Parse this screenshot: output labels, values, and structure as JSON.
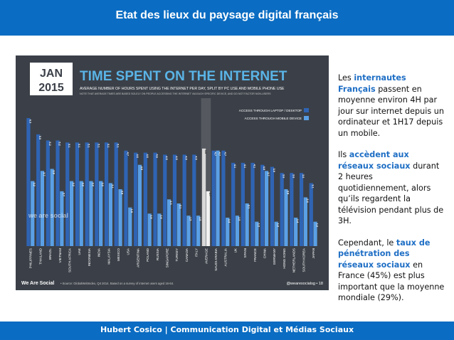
{
  "header": {
    "title": "Etat des lieux du paysage digital français"
  },
  "footer": {
    "text": "Hubert Cosico | Communication Digital et Médias Sociaux"
  },
  "slide": {
    "date_month": "JAN",
    "date_year": "2015",
    "brand_tag": "we are social",
    "footer_left": "We Are Social",
    "source": "• Source: GlobalWebIndex, Q4 2014. Based on a survey of internet users aged 16-64.",
    "footer_right": "@wearesocialsg • 18",
    "colors": {
      "laptop": "#2f64b4",
      "mobile": "#5aa0e6",
      "average": "#d0d0d0",
      "background": "#3b4048"
    }
  },
  "chart_data": {
    "type": "bar",
    "title": "TIME SPENT ON THE INTERNET",
    "subtitle": "AVERAGE NUMBER OF HOURS SPENT USING THE INTERNET PER DAY, SPLIT BY PC USE AND MOBILE PHONE USE",
    "note": "NOTE THAT AVERAGE TIMES ARE BASED SOLELY ON PEOPLE ACCESSING THE INTERNET VIA EACH SPECIFIC DEVICE, AND DO NOT FACTOR NON-USERS",
    "categories": [
      "PHILIPPINES",
      "THAILAND",
      "BRAZIL",
      "VIETNAM",
      "SOUTH AFRICA",
      "UAE",
      "INDONESIA",
      "INDIA",
      "MALAYSIA",
      "MEXICO",
      "USA",
      "ARGENTINA",
      "POLAND",
      "RUSSIA",
      "SINGAPORE",
      "TURKEY",
      "CANADA",
      "ITALY",
      "AVERAGE",
      "SAUDI ARABIA",
      "AUSTRALIA",
      "UK",
      "SPAIN",
      "FRANCE",
      "CHINA",
      "GERMANY",
      "HONG KONG",
      "NETHERLANDS",
      "SOUTH KOREA",
      "JAPAN"
    ],
    "series": [
      {
        "name": "ACCESS THROUGH LAPTOP / DESKTOP",
        "values": [
          "6.3",
          "5.5",
          "5.2",
          "5.2",
          "5.1",
          "5.1",
          "5.1",
          "5.1",
          "5.1",
          "5.1",
          "4.7",
          "4.6",
          "4.6",
          "4.6",
          "4.5",
          "4.5",
          "4.5",
          "4.5",
          "4.8",
          "4.7",
          "4.7",
          "4.1",
          "4.1",
          "4.1",
          "4.0",
          "3.9",
          "3.6",
          "3.6",
          "3.6",
          "3.1"
        ]
      },
      {
        "name": "ACCESS THROUGH MOBILE DEVICE",
        "values": [
          "3.2",
          "3.7",
          "3.8",
          "2.7",
          "3.2",
          "3.2",
          "3.2",
          "3.2",
          "3.1",
          "2.8",
          "1.9",
          "4.0",
          "1.6",
          "1.6",
          "2.3",
          "2.1",
          "1.5",
          "1.5",
          "2.7",
          "4.7",
          "1.4",
          "1.5",
          "2.1",
          "1.2",
          "3.7",
          "1.2",
          "2.8",
          "1.4",
          "2.4",
          "1.2"
        ]
      }
    ],
    "ylim": [
      0,
      7
    ],
    "legend_position": "top-right"
  }
}
